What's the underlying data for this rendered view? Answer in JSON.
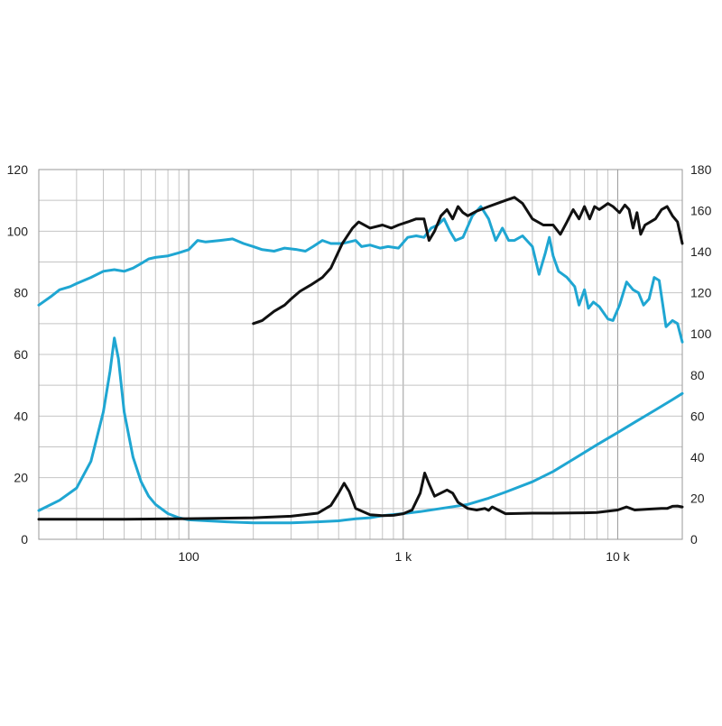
{
  "chart_data": {
    "type": "line",
    "x_scale": "log",
    "xlim": [
      20,
      20000
    ],
    "ylim": [
      0,
      120
    ],
    "y2lim": [
      0,
      180
    ],
    "grid": true,
    "x_ticks": [
      {
        "value": 100,
        "label": "100"
      },
      {
        "value": 1000,
        "label": "1 k"
      },
      {
        "value": 10000,
        "label": "10 k"
      }
    ],
    "y_ticks": [
      0,
      20,
      40,
      60,
      80,
      100,
      120
    ],
    "y2_ticks": [
      0,
      20,
      40,
      60,
      80,
      100,
      120,
      140,
      160,
      180
    ],
    "series": [
      {
        "color": "#1fa6d2",
        "axis": "left",
        "points": [
          [
            20,
            76
          ],
          [
            23,
            79
          ],
          [
            25,
            81
          ],
          [
            28,
            82
          ],
          [
            30,
            83
          ],
          [
            35,
            85
          ],
          [
            40,
            87
          ],
          [
            45,
            87.5
          ],
          [
            50,
            87
          ],
          [
            55,
            88
          ],
          [
            60,
            89.5
          ],
          [
            65,
            91
          ],
          [
            70,
            91.5
          ],
          [
            80,
            92
          ],
          [
            90,
            93
          ],
          [
            100,
            94
          ],
          [
            110,
            97
          ],
          [
            120,
            96.5
          ],
          [
            140,
            97
          ],
          [
            160,
            97.5
          ],
          [
            180,
            96
          ],
          [
            200,
            95
          ],
          [
            220,
            94
          ],
          [
            250,
            93.5
          ],
          [
            280,
            94.5
          ],
          [
            320,
            94
          ],
          [
            350,
            93.5
          ],
          [
            380,
            95
          ],
          [
            420,
            97
          ],
          [
            460,
            96
          ],
          [
            520,
            96
          ],
          [
            600,
            97
          ],
          [
            640,
            95
          ],
          [
            700,
            95.5
          ],
          [
            780,
            94.5
          ],
          [
            850,
            95
          ],
          [
            950,
            94.5
          ],
          [
            1050,
            98
          ],
          [
            1150,
            98.5
          ],
          [
            1250,
            98
          ],
          [
            1350,
            101
          ],
          [
            1450,
            102
          ],
          [
            1550,
            104
          ],
          [
            1650,
            100
          ],
          [
            1750,
            97
          ],
          [
            1900,
            98
          ],
          [
            2100,
            105
          ],
          [
            2300,
            108
          ],
          [
            2500,
            104
          ],
          [
            2700,
            97
          ],
          [
            2900,
            101
          ],
          [
            3100,
            97
          ],
          [
            3300,
            97
          ],
          [
            3600,
            98.5
          ],
          [
            4000,
            95
          ],
          [
            4300,
            86
          ],
          [
            4600,
            93
          ],
          [
            4800,
            98
          ],
          [
            5000,
            92
          ],
          [
            5300,
            87
          ],
          [
            5800,
            85
          ],
          [
            6300,
            82
          ],
          [
            6600,
            76
          ],
          [
            7000,
            81
          ],
          [
            7300,
            75
          ],
          [
            7700,
            77
          ],
          [
            8200,
            75.5
          ],
          [
            9000,
            71.5
          ],
          [
            9500,
            71
          ],
          [
            10200,
            76
          ],
          [
            11000,
            83.5
          ],
          [
            11800,
            81
          ],
          [
            12500,
            80
          ],
          [
            13200,
            76
          ],
          [
            14000,
            78
          ],
          [
            14800,
            85
          ],
          [
            15600,
            84
          ],
          [
            16800,
            69
          ],
          [
            18000,
            71
          ],
          [
            19000,
            70
          ],
          [
            20000,
            64
          ]
        ]
      },
      {
        "color": "#1fa6d2",
        "axis": "right",
        "points": [
          [
            20,
            14
          ],
          [
            25,
            19
          ],
          [
            30,
            25
          ],
          [
            35,
            38
          ],
          [
            40,
            62
          ],
          [
            43,
            82
          ],
          [
            45,
            98
          ],
          [
            47,
            88
          ],
          [
            50,
            62
          ],
          [
            55,
            40
          ],
          [
            60,
            28
          ],
          [
            65,
            21
          ],
          [
            70,
            17
          ],
          [
            80,
            12.5
          ],
          [
            90,
            10.5
          ],
          [
            100,
            9.5
          ],
          [
            150,
            8.5
          ],
          [
            200,
            8
          ],
          [
            300,
            8
          ],
          [
            400,
            8.5
          ],
          [
            500,
            9
          ],
          [
            600,
            10
          ],
          [
            700,
            10.5
          ],
          [
            800,
            11.5
          ],
          [
            1000,
            12.5
          ],
          [
            1200,
            13.5
          ],
          [
            1500,
            15
          ],
          [
            2000,
            17
          ],
          [
            2500,
            20
          ],
          [
            3000,
            23
          ],
          [
            4000,
            28
          ],
          [
            5000,
            33
          ],
          [
            6000,
            38
          ],
          [
            8000,
            46
          ],
          [
            10000,
            52
          ],
          [
            12000,
            57
          ],
          [
            15000,
            63
          ],
          [
            18000,
            68
          ],
          [
            20000,
            71
          ]
        ]
      },
      {
        "color": "#111111",
        "axis": "left",
        "points": [
          [
            20,
            6.5
          ],
          [
            50,
            6.5
          ],
          [
            100,
            6.7
          ],
          [
            200,
            7
          ],
          [
            300,
            7.5
          ],
          [
            400,
            8.5
          ],
          [
            460,
            11
          ],
          [
            500,
            15
          ],
          [
            530,
            18.2
          ],
          [
            560,
            15.5
          ],
          [
            600,
            10
          ],
          [
            700,
            8
          ],
          [
            800,
            7.7
          ],
          [
            900,
            7.8
          ],
          [
            1000,
            8.3
          ],
          [
            1100,
            9.5
          ],
          [
            1200,
            15
          ],
          [
            1260,
            21.5
          ],
          [
            1320,
            18
          ],
          [
            1400,
            14
          ],
          [
            1600,
            16
          ],
          [
            1700,
            15
          ],
          [
            1800,
            12
          ],
          [
            1900,
            11
          ],
          [
            2000,
            10
          ],
          [
            2200,
            9.5
          ],
          [
            2400,
            10
          ],
          [
            2500,
            9.4
          ],
          [
            2600,
            10.5
          ],
          [
            3000,
            8.3
          ],
          [
            4000,
            8.5
          ],
          [
            5000,
            8.5
          ],
          [
            7000,
            8.6
          ],
          [
            8000,
            8.7
          ],
          [
            10000,
            9.5
          ],
          [
            11000,
            10.5
          ],
          [
            12000,
            9.5
          ],
          [
            14000,
            9.8
          ],
          [
            16000,
            10
          ],
          [
            17000,
            10
          ],
          [
            18000,
            10.7
          ],
          [
            19000,
            10.8
          ],
          [
            20000,
            10.5
          ]
        ]
      },
      {
        "color": "#111111",
        "axis": "left",
        "points": [
          [
            200,
            70
          ],
          [
            220,
            71
          ],
          [
            250,
            74
          ],
          [
            280,
            76
          ],
          [
            300,
            78
          ],
          [
            330,
            80.5
          ],
          [
            370,
            82.5
          ],
          [
            420,
            85
          ],
          [
            460,
            88
          ],
          [
            520,
            96
          ],
          [
            580,
            101
          ],
          [
            620,
            103
          ],
          [
            700,
            101
          ],
          [
            800,
            102
          ],
          [
            880,
            101
          ],
          [
            950,
            102
          ],
          [
            1050,
            103
          ],
          [
            1150,
            104
          ],
          [
            1250,
            104
          ],
          [
            1320,
            97
          ],
          [
            1400,
            100
          ],
          [
            1500,
            105
          ],
          [
            1600,
            107
          ],
          [
            1700,
            104
          ],
          [
            1800,
            108
          ],
          [
            1900,
            106
          ],
          [
            2000,
            105
          ],
          [
            2200,
            106.5
          ],
          [
            2500,
            108
          ],
          [
            3000,
            110
          ],
          [
            3300,
            111
          ],
          [
            3600,
            109
          ],
          [
            4000,
            104
          ],
          [
            4500,
            102
          ],
          [
            5000,
            102
          ],
          [
            5400,
            99
          ],
          [
            5800,
            103
          ],
          [
            6200,
            107
          ],
          [
            6600,
            104
          ],
          [
            7000,
            108
          ],
          [
            7400,
            104
          ],
          [
            7800,
            108
          ],
          [
            8200,
            107
          ],
          [
            9000,
            109
          ],
          [
            9500,
            108
          ],
          [
            10200,
            106
          ],
          [
            10800,
            108.5
          ],
          [
            11300,
            107
          ],
          [
            11800,
            101
          ],
          [
            12300,
            106
          ],
          [
            12800,
            99
          ],
          [
            13400,
            102
          ],
          [
            14200,
            103
          ],
          [
            15000,
            104
          ],
          [
            16000,
            107
          ],
          [
            17000,
            108
          ],
          [
            18000,
            105
          ],
          [
            19000,
            103
          ],
          [
            20000,
            96
          ]
        ]
      }
    ]
  }
}
